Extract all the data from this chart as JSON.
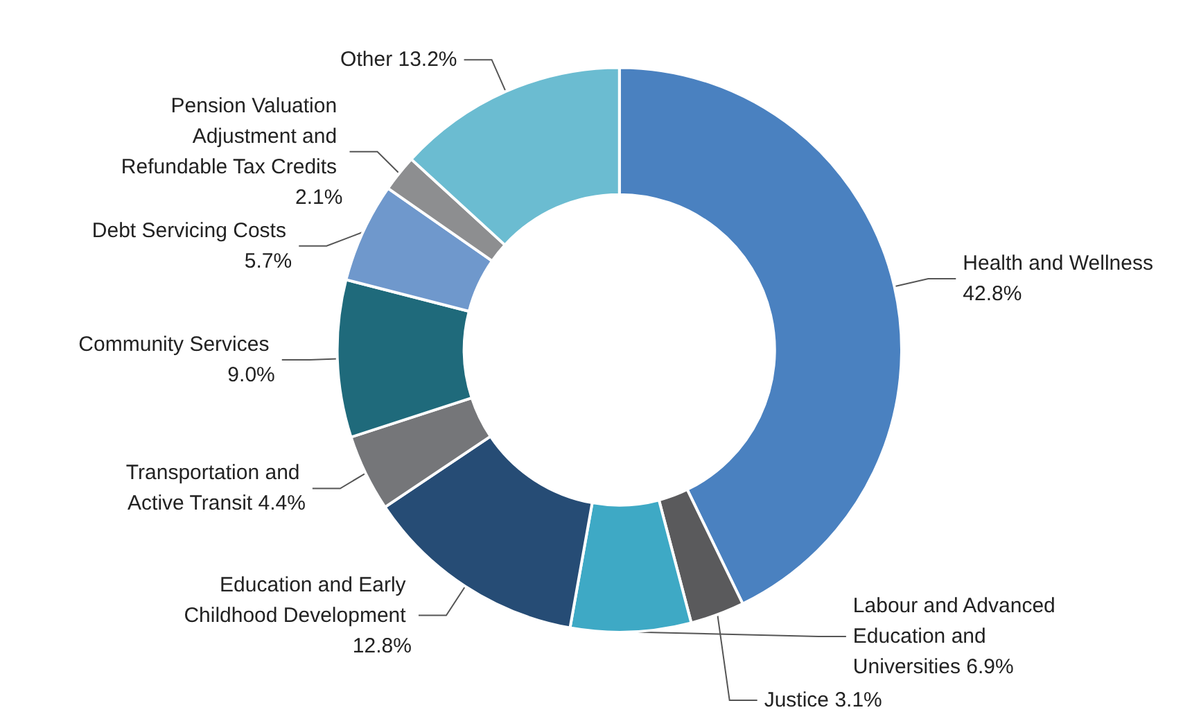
{
  "chart_data": {
    "type": "donut",
    "categories": [
      "Health and Wellness",
      "Justice",
      "Labour and Advanced Education and Universities",
      "Education and Early Childhood Development",
      "Transportation and Active Transit",
      "Community Services",
      "Debt Servicing Costs",
      "Pension Valuation Adjustment and Refundable Tax Credits",
      "Other"
    ],
    "values": [
      42.8,
      3.1,
      6.9,
      12.8,
      4.4,
      9.0,
      5.7,
      2.1,
      13.2
    ],
    "value_labels": [
      "42.8%",
      "3.1%",
      "6.9%",
      "12.8%",
      "4.4%",
      "9.0%",
      "5.7%",
      "2.1%",
      "13.2%"
    ],
    "colors": [
      "#4a81c0",
      "#5a5a5c",
      "#3ea9c5",
      "#264c75",
      "#757679",
      "#1f6a7b",
      "#6f98cc",
      "#8d8e90",
      "#6bbcd1"
    ],
    "legend": false
  }
}
